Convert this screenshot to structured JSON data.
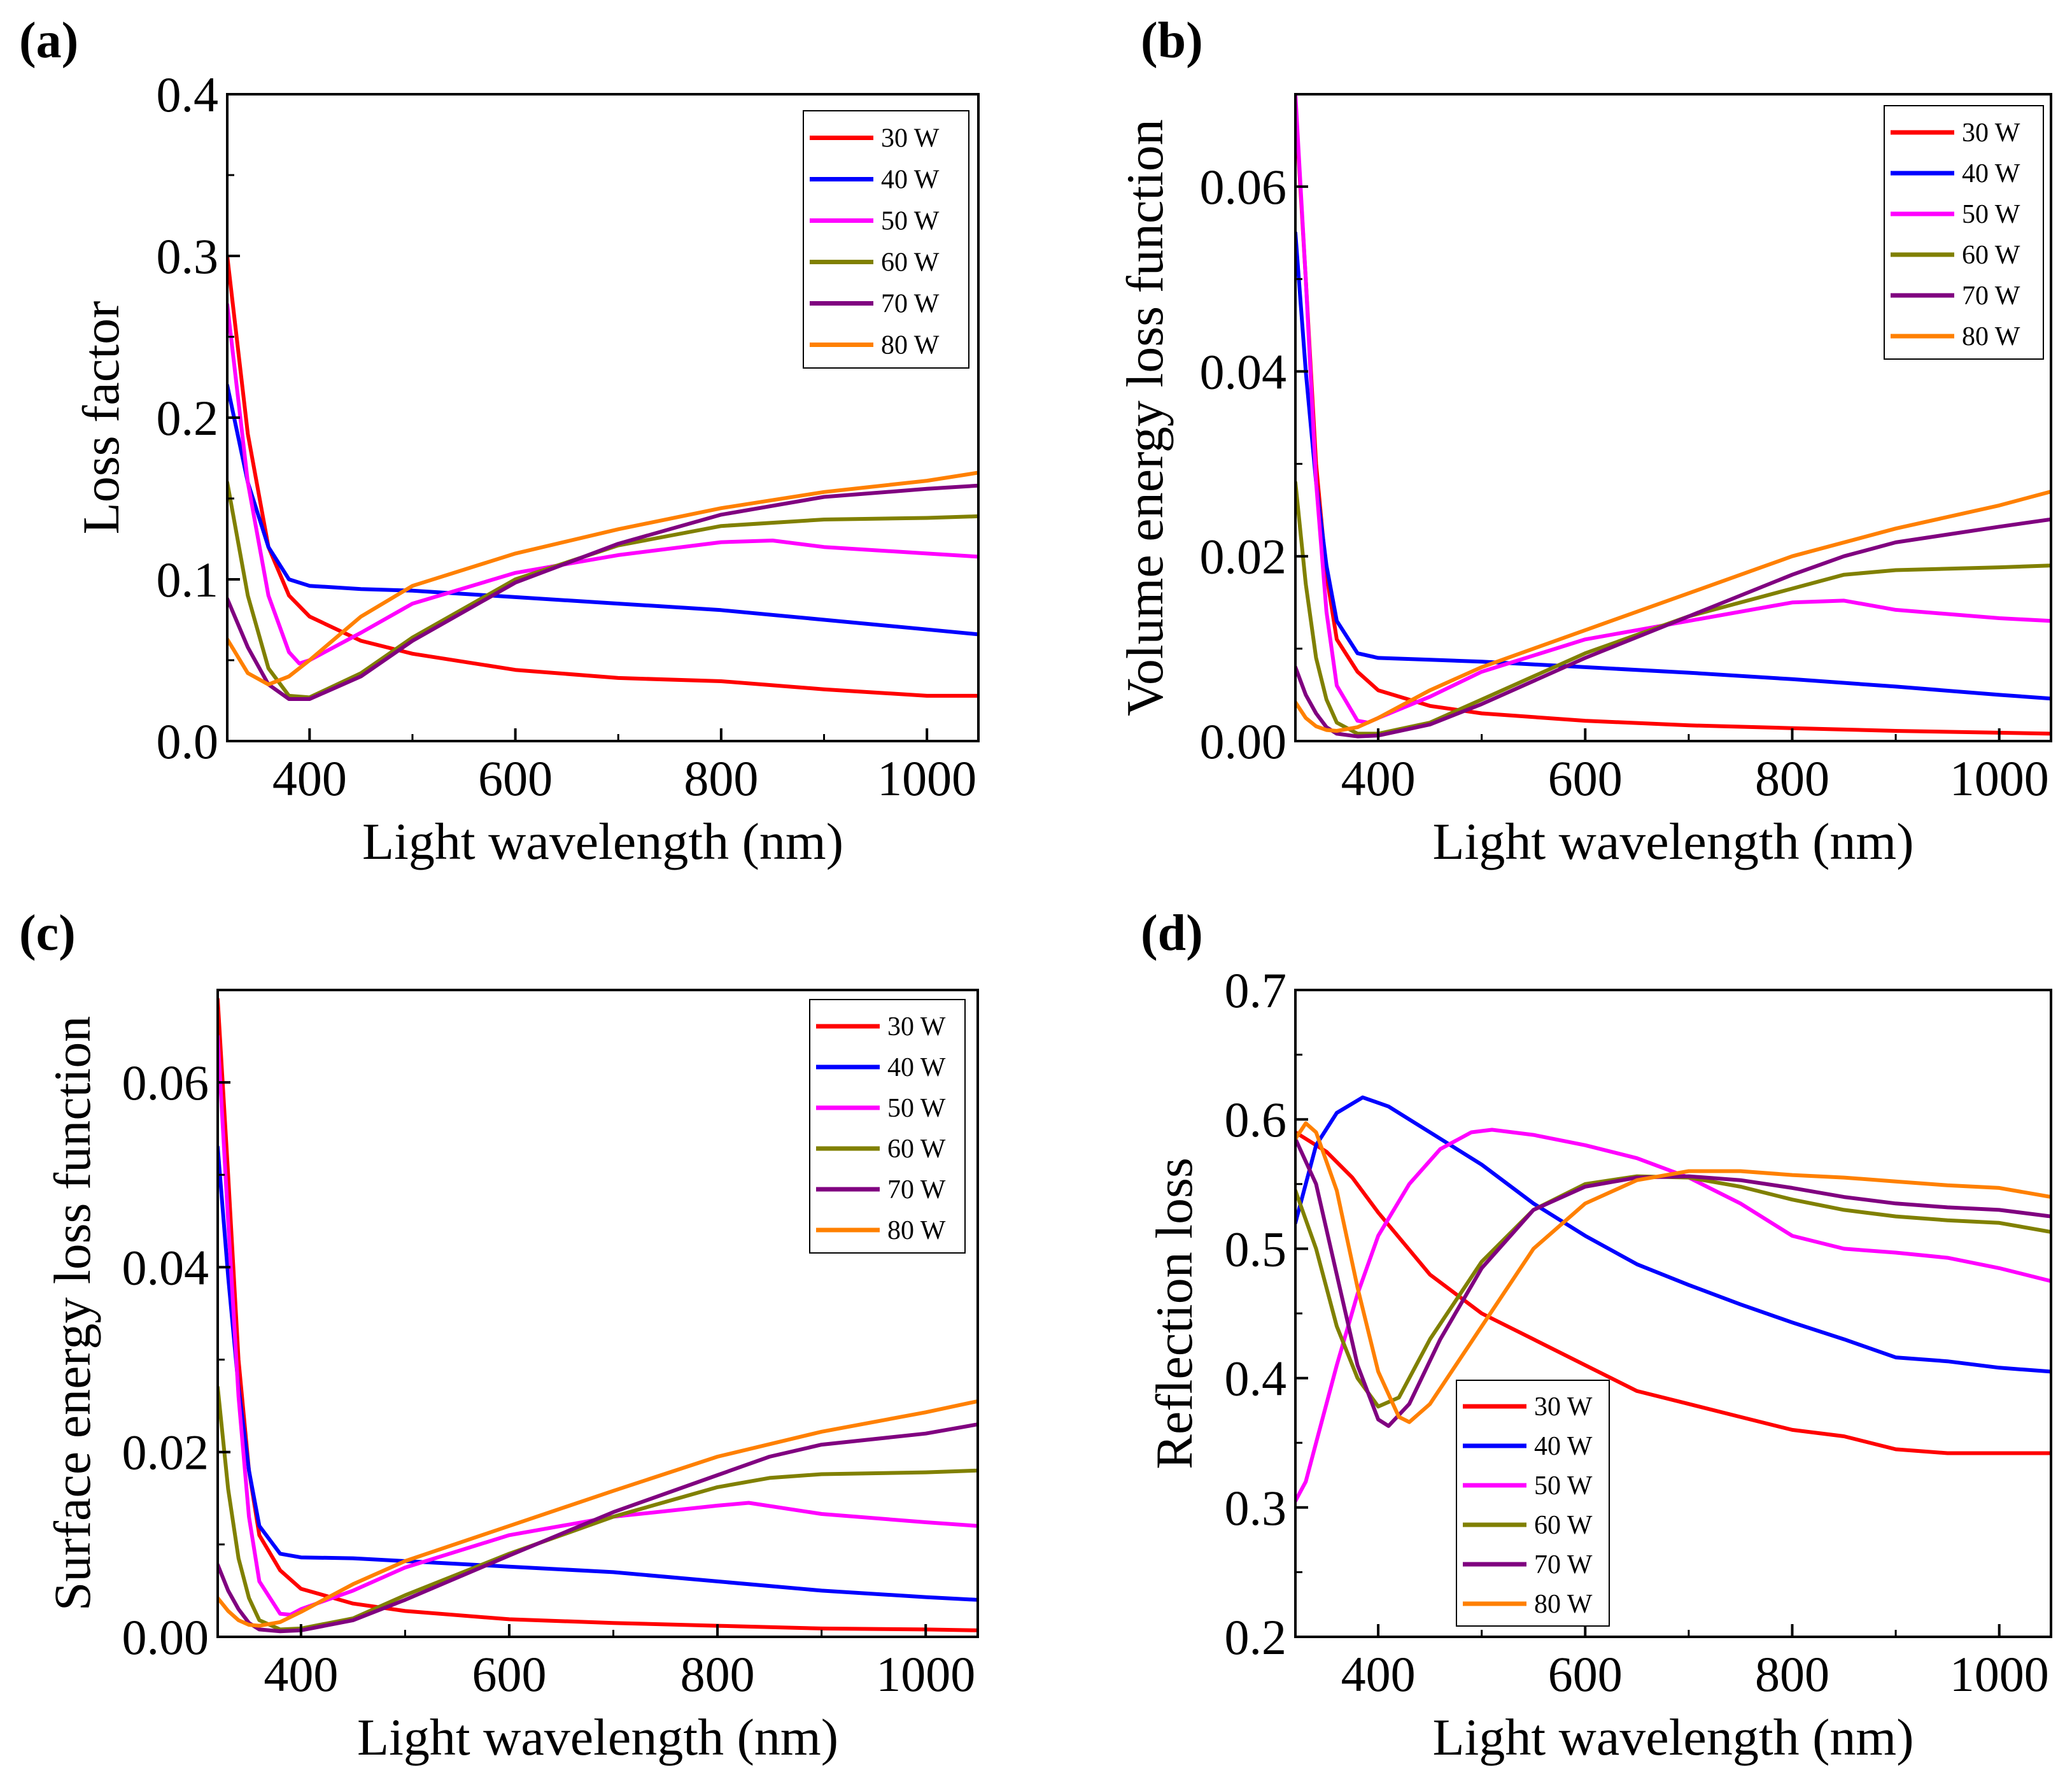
{
  "colors": {
    "30 W": "#ff0000",
    "40 W": "#0000ff",
    "50 W": "#ff00ff",
    "60 W": "#808000",
    "70 W": "#800080",
    "80 W": "#ff8000"
  },
  "chart_data": [
    {
      "panel_label": "(a)",
      "type": "line",
      "title": "",
      "xlabel": "Light wavelength (nm)",
      "ylabel": "Loss factor",
      "xlim": [
        320,
        1050
      ],
      "ylim": [
        0.0,
        0.4
      ],
      "xticks": [
        400,
        600,
        800,
        1000
      ],
      "xtick_labels": [
        "400",
        "600",
        "800",
        "1000"
      ],
      "yticks": [
        0.0,
        0.1,
        0.2,
        0.3,
        0.4
      ],
      "ytick_labels": [
        "0.0",
        "0.1",
        "0.2",
        "0.3",
        "0.4"
      ],
      "legend": "top-right",
      "series": [
        {
          "name": "30 W",
          "x": [
            320,
            340,
            360,
            380,
            400,
            450,
            500,
            600,
            700,
            800,
            900,
            1000,
            1050
          ],
          "y": [
            0.3,
            0.19,
            0.12,
            0.09,
            0.077,
            0.062,
            0.054,
            0.044,
            0.039,
            0.037,
            0.032,
            0.028,
            0.028
          ]
        },
        {
          "name": "40 W",
          "x": [
            320,
            340,
            360,
            380,
            400,
            450,
            500,
            600,
            700,
            800,
            900,
            1000,
            1050
          ],
          "y": [
            0.22,
            0.16,
            0.12,
            0.1,
            0.096,
            0.094,
            0.093,
            0.089,
            0.085,
            0.081,
            0.075,
            0.069,
            0.066
          ]
        },
        {
          "name": "50 W",
          "x": [
            320,
            340,
            360,
            380,
            390,
            400,
            450,
            500,
            600,
            700,
            800,
            850,
            900,
            1000,
            1050
          ],
          "y": [
            0.27,
            0.16,
            0.09,
            0.055,
            0.048,
            0.05,
            0.067,
            0.085,
            0.104,
            0.115,
            0.123,
            0.124,
            0.12,
            0.116,
            0.114
          ]
        },
        {
          "name": "60 W",
          "x": [
            320,
            340,
            360,
            380,
            400,
            450,
            500,
            600,
            700,
            800,
            900,
            1000,
            1050
          ],
          "y": [
            0.16,
            0.09,
            0.045,
            0.028,
            0.027,
            0.042,
            0.064,
            0.1,
            0.121,
            0.133,
            0.137,
            0.138,
            0.139
          ]
        },
        {
          "name": "70 W",
          "x": [
            320,
            340,
            360,
            380,
            400,
            450,
            500,
            600,
            700,
            800,
            900,
            1000,
            1050
          ],
          "y": [
            0.088,
            0.058,
            0.035,
            0.026,
            0.026,
            0.04,
            0.062,
            0.098,
            0.122,
            0.14,
            0.151,
            0.156,
            0.158
          ]
        },
        {
          "name": "80 W",
          "x": [
            320,
            340,
            360,
            380,
            400,
            450,
            500,
            600,
            700,
            800,
            900,
            1000,
            1050
          ],
          "y": [
            0.063,
            0.042,
            0.035,
            0.04,
            0.05,
            0.077,
            0.096,
            0.116,
            0.131,
            0.144,
            0.154,
            0.161,
            0.166
          ]
        }
      ]
    },
    {
      "panel_label": "(b)",
      "type": "line",
      "title": "",
      "xlabel": "Light wavelength (nm)",
      "ylabel": "Volume energy loss function",
      "xlim": [
        320,
        1050
      ],
      "ylim": [
        0.0,
        0.07
      ],
      "xticks": [
        400,
        600,
        800,
        1000
      ],
      "xtick_labels": [
        "400",
        "600",
        "800",
        "1000"
      ],
      "yticks": [
        0.0,
        0.02,
        0.04,
        0.06
      ],
      "ytick_labels": [
        "0.00",
        "0.02",
        "0.04",
        "0.06"
      ],
      "legend": "top-right",
      "series": [
        {
          "name": "30 W",
          "x": [
            320,
            330,
            340,
            350,
            360,
            380,
            400,
            450,
            500,
            600,
            700,
            800,
            900,
            1000,
            1050
          ],
          "y": [
            0.069,
            0.05,
            0.03,
            0.018,
            0.011,
            0.0075,
            0.0055,
            0.0038,
            0.003,
            0.0022,
            0.0017,
            0.0014,
            0.0011,
            0.0009,
            0.0008
          ]
        },
        {
          "name": "40 W",
          "x": [
            320,
            330,
            340,
            350,
            360,
            380,
            400,
            450,
            500,
            600,
            700,
            800,
            900,
            1000,
            1050
          ],
          "y": [
            0.055,
            0.04,
            0.028,
            0.019,
            0.013,
            0.0095,
            0.009,
            0.0088,
            0.0086,
            0.008,
            0.0074,
            0.0067,
            0.0059,
            0.005,
            0.0046
          ]
        },
        {
          "name": "50 W",
          "x": [
            320,
            330,
            340,
            350,
            360,
            380,
            390,
            400,
            450,
            500,
            600,
            700,
            800,
            850,
            900,
            1000,
            1050
          ],
          "y": [
            0.07,
            0.05,
            0.028,
            0.014,
            0.006,
            0.0022,
            0.002,
            0.0025,
            0.0048,
            0.0075,
            0.011,
            0.013,
            0.015,
            0.0152,
            0.0142,
            0.0133,
            0.013
          ]
        },
        {
          "name": "60 W",
          "x": [
            320,
            330,
            340,
            350,
            360,
            380,
            400,
            450,
            500,
            600,
            700,
            800,
            850,
            900,
            1000,
            1050
          ],
          "y": [
            0.028,
            0.017,
            0.009,
            0.0045,
            0.002,
            0.0008,
            0.0008,
            0.002,
            0.0045,
            0.0095,
            0.0135,
            0.0165,
            0.018,
            0.0185,
            0.0188,
            0.019
          ]
        },
        {
          "name": "70 W",
          "x": [
            320,
            330,
            340,
            350,
            360,
            380,
            400,
            450,
            500,
            600,
            700,
            800,
            850,
            900,
            1000,
            1050
          ],
          "y": [
            0.008,
            0.005,
            0.003,
            0.0015,
            0.0008,
            0.0005,
            0.0006,
            0.0018,
            0.004,
            0.009,
            0.0135,
            0.018,
            0.02,
            0.0215,
            0.0232,
            0.024
          ]
        },
        {
          "name": "80 W",
          "x": [
            320,
            330,
            340,
            350,
            360,
            380,
            400,
            450,
            500,
            600,
            700,
            800,
            900,
            1000,
            1050
          ],
          "y": [
            0.0042,
            0.0025,
            0.0016,
            0.0012,
            0.0011,
            0.0015,
            0.0025,
            0.0055,
            0.008,
            0.012,
            0.016,
            0.02,
            0.023,
            0.0255,
            0.027
          ]
        }
      ]
    },
    {
      "panel_label": "(c)",
      "type": "line",
      "title": "",
      "xlabel": "Light wavelength (nm)",
      "ylabel": "Surface energy loss function",
      "xlim": [
        320,
        1050
      ],
      "ylim": [
        0.0,
        0.07
      ],
      "xticks": [
        400,
        600,
        800,
        1000
      ],
      "xtick_labels": [
        "400",
        "600",
        "800",
        "1000"
      ],
      "yticks": [
        0.0,
        0.02,
        0.04,
        0.06
      ],
      "ytick_labels": [
        "0.00",
        "0.02",
        "0.04",
        "0.06"
      ],
      "legend": "top-right",
      "series": [
        {
          "name": "30 W",
          "x": [
            320,
            330,
            340,
            350,
            360,
            380,
            400,
            450,
            500,
            600,
            700,
            800,
            900,
            1000,
            1050
          ],
          "y": [
            0.069,
            0.05,
            0.03,
            0.018,
            0.011,
            0.0072,
            0.0052,
            0.0036,
            0.0028,
            0.0019,
            0.0015,
            0.0012,
            0.0009,
            0.0008,
            0.0007
          ]
        },
        {
          "name": "40 W",
          "x": [
            320,
            330,
            340,
            350,
            360,
            380,
            400,
            450,
            500,
            600,
            700,
            800,
            900,
            1000,
            1050
          ],
          "y": [
            0.053,
            0.039,
            0.027,
            0.018,
            0.012,
            0.009,
            0.0086,
            0.0085,
            0.0082,
            0.0076,
            0.007,
            0.006,
            0.005,
            0.0043,
            0.004
          ]
        },
        {
          "name": "50 W",
          "x": [
            320,
            330,
            340,
            350,
            360,
            380,
            390,
            400,
            450,
            500,
            600,
            700,
            800,
            830,
            900,
            1000,
            1050
          ],
          "y": [
            0.065,
            0.045,
            0.026,
            0.013,
            0.006,
            0.0025,
            0.0024,
            0.003,
            0.005,
            0.0075,
            0.011,
            0.013,
            0.0142,
            0.0145,
            0.0133,
            0.0124,
            0.012
          ]
        },
        {
          "name": "60 W",
          "x": [
            320,
            330,
            340,
            350,
            360,
            380,
            400,
            450,
            500,
            600,
            700,
            800,
            850,
            900,
            1000,
            1050
          ],
          "y": [
            0.027,
            0.016,
            0.0085,
            0.0042,
            0.0018,
            0.0008,
            0.0009,
            0.002,
            0.0045,
            0.009,
            0.013,
            0.0162,
            0.0172,
            0.0176,
            0.0178,
            0.018
          ]
        },
        {
          "name": "70 W",
          "x": [
            320,
            330,
            340,
            350,
            360,
            380,
            400,
            450,
            500,
            600,
            700,
            800,
            850,
            900,
            1000,
            1050
          ],
          "y": [
            0.0078,
            0.005,
            0.003,
            0.0015,
            0.0008,
            0.0006,
            0.0007,
            0.0018,
            0.004,
            0.0088,
            0.0135,
            0.0175,
            0.0195,
            0.0208,
            0.022,
            0.023
          ]
        },
        {
          "name": "80 W",
          "x": [
            320,
            330,
            340,
            350,
            360,
            380,
            400,
            450,
            500,
            600,
            700,
            800,
            900,
            1000,
            1050
          ],
          "y": [
            0.0042,
            0.0028,
            0.0018,
            0.0013,
            0.0012,
            0.0016,
            0.0027,
            0.0057,
            0.0082,
            0.012,
            0.0158,
            0.0195,
            0.0222,
            0.0243,
            0.0255
          ]
        }
      ]
    },
    {
      "panel_label": "(d)",
      "type": "line",
      "title": "",
      "xlabel": "Light wavelength (nm)",
      "ylabel": "Reflection loss",
      "xlim": [
        320,
        1050
      ],
      "ylim": [
        0.2,
        0.7
      ],
      "xticks": [
        400,
        600,
        800,
        1000
      ],
      "xtick_labels": [
        "400",
        "600",
        "800",
        "1000"
      ],
      "yticks": [
        0.2,
        0.3,
        0.4,
        0.5,
        0.6,
        0.7
      ],
      "ytick_labels": [
        "0.2",
        "0.3",
        "0.4",
        "0.5",
        "0.6",
        "0.7"
      ],
      "legend": "bottom-left",
      "series": [
        {
          "name": "30 W",
          "x": [
            320,
            350,
            375,
            400,
            450,
            500,
            550,
            600,
            650,
            700,
            750,
            800,
            850,
            900,
            950,
            1000,
            1050
          ],
          "y": [
            0.59,
            0.575,
            0.555,
            0.528,
            0.48,
            0.45,
            0.43,
            0.41,
            0.39,
            0.38,
            0.37,
            0.36,
            0.355,
            0.345,
            0.342,
            0.342,
            0.342
          ]
        },
        {
          "name": "40 W",
          "x": [
            320,
            340,
            360,
            385,
            410,
            450,
            500,
            550,
            600,
            650,
            700,
            750,
            800,
            850,
            900,
            950,
            1000,
            1050
          ],
          "y": [
            0.52,
            0.58,
            0.605,
            0.617,
            0.61,
            0.59,
            0.565,
            0.535,
            0.51,
            0.488,
            0.472,
            0.457,
            0.443,
            0.43,
            0.416,
            0.413,
            0.408,
            0.405
          ]
        },
        {
          "name": "50 W",
          "x": [
            320,
            330,
            340,
            360,
            380,
            400,
            430,
            460,
            490,
            510,
            550,
            600,
            650,
            700,
            750,
            800,
            850,
            900,
            950,
            1000,
            1050
          ],
          "y": [
            0.305,
            0.32,
            0.35,
            0.41,
            0.465,
            0.51,
            0.55,
            0.577,
            0.59,
            0.592,
            0.588,
            0.58,
            0.57,
            0.555,
            0.535,
            0.51,
            0.5,
            0.497,
            0.493,
            0.485,
            0.475
          ]
        },
        {
          "name": "60 W",
          "x": [
            320,
            340,
            360,
            380,
            400,
            420,
            450,
            500,
            550,
            600,
            650,
            700,
            750,
            800,
            850,
            900,
            950,
            1000,
            1050
          ],
          "y": [
            0.545,
            0.5,
            0.44,
            0.4,
            0.378,
            0.385,
            0.43,
            0.49,
            0.53,
            0.55,
            0.556,
            0.555,
            0.548,
            0.538,
            0.53,
            0.525,
            0.522,
            0.52,
            0.513
          ]
        },
        {
          "name": "70 W",
          "x": [
            320,
            340,
            360,
            380,
            400,
            410,
            430,
            460,
            500,
            550,
            600,
            650,
            700,
            750,
            800,
            850,
            900,
            950,
            1000,
            1050
          ],
          "y": [
            0.585,
            0.55,
            0.48,
            0.41,
            0.368,
            0.363,
            0.38,
            0.43,
            0.485,
            0.53,
            0.548,
            0.555,
            0.556,
            0.553,
            0.547,
            0.54,
            0.535,
            0.532,
            0.53,
            0.525
          ]
        },
        {
          "name": "80 W",
          "x": [
            320,
            330,
            340,
            360,
            380,
            400,
            420,
            430,
            450,
            500,
            550,
            600,
            650,
            700,
            750,
            800,
            850,
            900,
            950,
            1000,
            1050
          ],
          "y": [
            0.585,
            0.597,
            0.59,
            0.545,
            0.47,
            0.405,
            0.37,
            0.366,
            0.38,
            0.44,
            0.5,
            0.535,
            0.553,
            0.56,
            0.56,
            0.557,
            0.555,
            0.552,
            0.549,
            0.547,
            0.54
          ]
        }
      ]
    }
  ]
}
